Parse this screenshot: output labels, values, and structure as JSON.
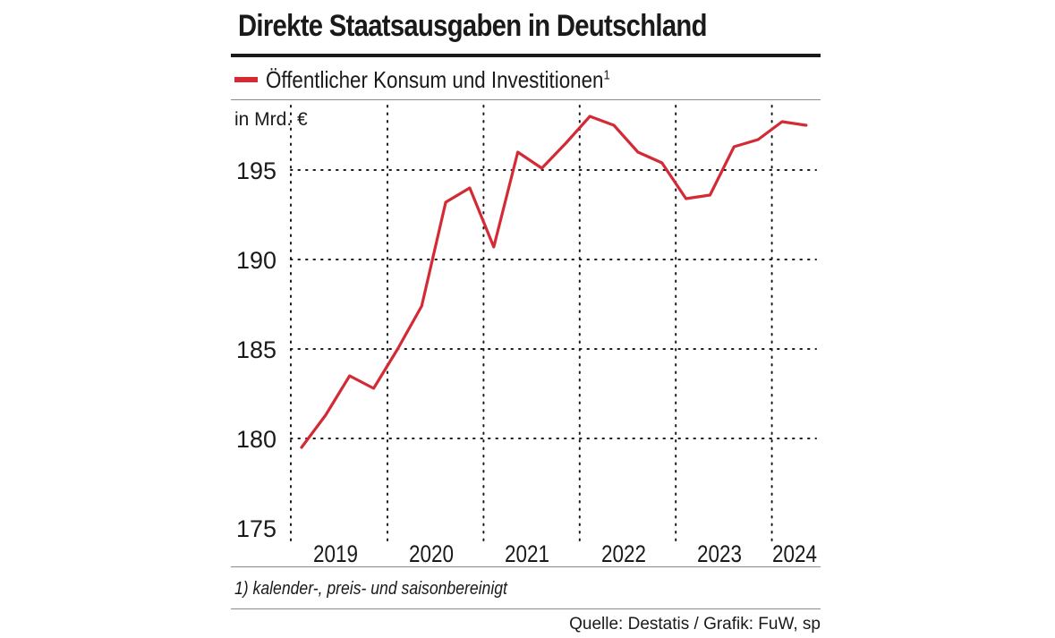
{
  "colors": {
    "line": "#d42a35",
    "grid": "#1a1a1a",
    "text": "#1a1a1a"
  },
  "chart_data": {
    "type": "line",
    "title": "Direkte Staatsausgaben in Deutschland",
    "ylabel": "in Mrd. €",
    "xlabel": "",
    "ylim": [
      175,
      199
    ],
    "yticks": [
      175,
      180,
      185,
      190,
      195
    ],
    "x_tick_labels": [
      "2019",
      "2020",
      "2021",
      "2022",
      "2023",
      "2024"
    ],
    "grid": true,
    "legend_position": "top-left",
    "footnote": "1) kalender-, preis- und saisonbereinigt",
    "source": "Quelle: Destatis / Grafik: FuW, sp",
    "series": [
      {
        "name": "Öffentlicher Konsum und Investitionen",
        "name_sup": "1",
        "x": [
          "2018 Q4",
          "2019 Q1",
          "2019 Q2",
          "2019 Q3",
          "2019 Q4",
          "2020 Q1",
          "2020 Q2",
          "2020 Q3",
          "2020 Q4",
          "2021 Q1",
          "2021 Q2",
          "2021 Q3",
          "2021 Q4",
          "2022 Q1",
          "2022 Q2",
          "2022 Q3",
          "2022 Q4",
          "2023 Q1",
          "2023 Q2",
          "2023 Q3",
          "2023 Q4",
          "2024 Q1"
        ],
        "values": [
          179.5,
          181.3,
          183.5,
          182.8,
          185.0,
          187.4,
          193.2,
          194.0,
          190.7,
          196.0,
          195.1,
          196.5,
          198.0,
          197.5,
          196.0,
          195.4,
          193.4,
          193.6,
          196.3,
          196.7,
          197.7,
          197.5
        ]
      }
    ]
  }
}
